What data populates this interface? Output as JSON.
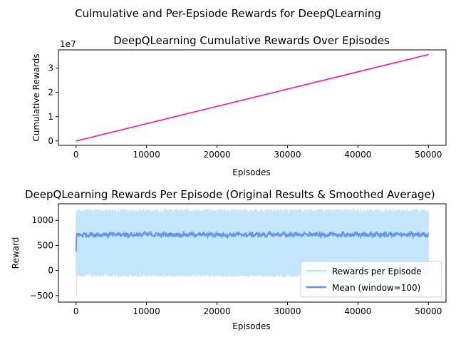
{
  "suptitle": "Culmulative and Per-Epsiode Rewards for DeepQLearning",
  "chart_data": [
    {
      "type": "line",
      "title": "DeepQLearning Cumulative Rewards Over Episodes",
      "xlabel": "Episodes",
      "ylabel": "Cumulative Rewards",
      "offset_text": "1e7",
      "xlim": [
        -2500,
        52500
      ],
      "ylim": [
        -1.8,
        37.5
      ],
      "x_ticks": [
        0,
        10000,
        20000,
        30000,
        40000,
        50000
      ],
      "x_tick_labels": [
        "0",
        "10000",
        "20000",
        "30000",
        "40000",
        "50000"
      ],
      "y_ticks": [
        0,
        10,
        20,
        30
      ],
      "y_tick_labels": [
        "0",
        "1",
        "2",
        "3"
      ],
      "y_units": "1e6 (axis shows multiples of 1e7)",
      "grid": false,
      "series": [
        {
          "color": "#ff1493",
          "x": [
            0,
            50000
          ],
          "y": [
            0,
            35.6
          ]
        }
      ]
    },
    {
      "type": "line",
      "title": "DeepQLearning Rewards Per Episode (Original Results & Smoothed Average)",
      "xlabel": "Episodes",
      "ylabel": "Reward",
      "xlim": [
        -2500,
        52500
      ],
      "ylim": [
        -630,
        1330
      ],
      "x_ticks": [
        0,
        10000,
        20000,
        30000,
        40000,
        50000
      ],
      "x_tick_labels": [
        "0",
        "10000",
        "20000",
        "30000",
        "40000",
        "50000"
      ],
      "y_ticks": [
        -500,
        0,
        500,
        1000
      ],
      "y_tick_labels": [
        "−500",
        "0",
        "500",
        "1000"
      ],
      "grid": false,
      "legend": "bottom-right",
      "series": [
        {
          "name": "Rewards per Episode",
          "color": "#87cefa",
          "band_low": -130,
          "band_high": 1230,
          "min_value": -510,
          "x_range": [
            0,
            50000
          ]
        },
        {
          "name": "Mean (window=100)",
          "color": "#6495ed",
          "mean": 715,
          "start_value": 380,
          "x_range": [
            0,
            50000
          ]
        }
      ]
    }
  ]
}
